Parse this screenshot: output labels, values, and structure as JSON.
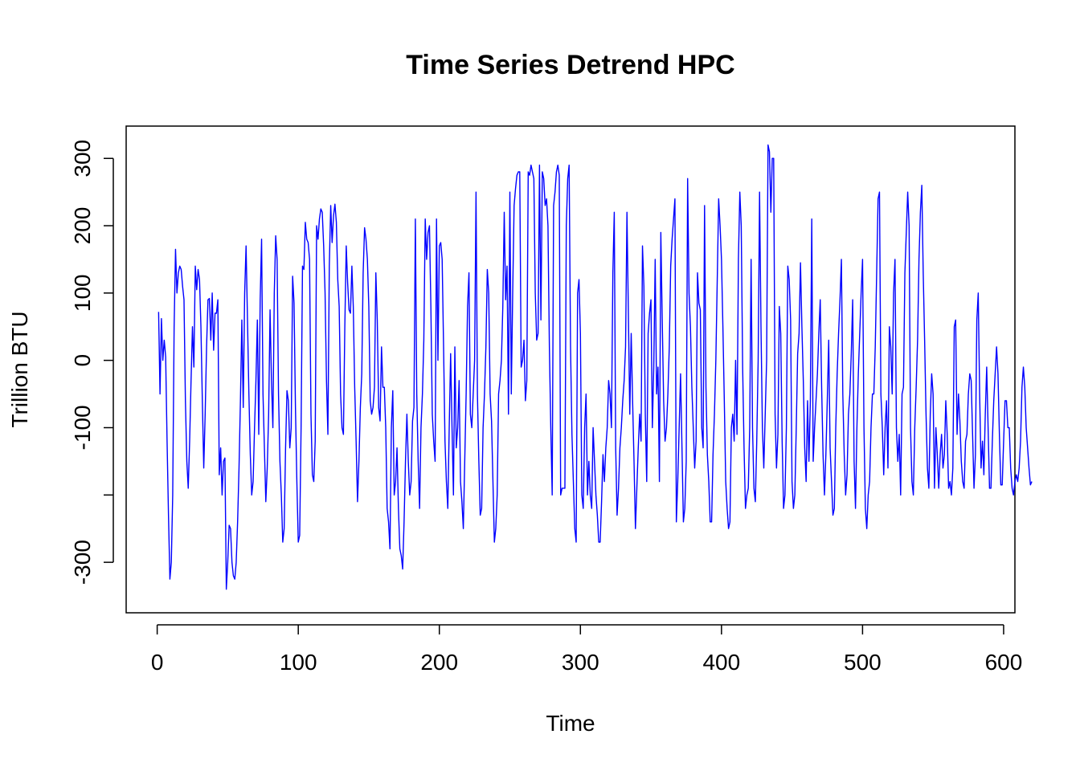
{
  "chart_data": {
    "type": "line",
    "title": "Time Series Detrend HPC",
    "xlabel": "Time",
    "ylabel": "Trillion BTU",
    "xlim": [
      -22,
      608
    ],
    "ylim": [
      -375,
      348
    ],
    "x_ticks": [
      0,
      100,
      200,
      300,
      400,
      500,
      600
    ],
    "x_tick_labels": [
      "0",
      "100",
      "200",
      "300",
      "400",
      "500",
      "600"
    ],
    "y_ticks": [
      -300,
      -200,
      -100,
      0,
      100,
      200,
      300
    ],
    "y_tick_labels": [
      "-300",
      "",
      "-100",
      "0",
      "100",
      "200",
      "300"
    ],
    "grid": false,
    "legend": "none",
    "line_color": "#0000ff",
    "series": [
      {
        "x_start": 1,
        "x_step": 1,
        "values": [
          72,
          -50,
          62,
          0,
          30,
          5,
          -120,
          -230,
          -325,
          -300,
          -200,
          50,
          165,
          100,
          130,
          140,
          135,
          110,
          90,
          -60,
          -150,
          -190,
          -120,
          -30,
          50,
          -10,
          140,
          105,
          135,
          120,
          50,
          -60,
          -160,
          -80,
          20,
          90,
          92,
          30,
          100,
          15,
          70,
          70,
          90,
          -170,
          -130,
          -200,
          -150,
          -145,
          -340,
          -300,
          -245,
          -250,
          -300,
          -320,
          -325,
          -300,
          -240,
          -160,
          -60,
          60,
          -70,
          100,
          170,
          60,
          -50,
          -140,
          -200,
          -180,
          -100,
          -30,
          60,
          -110,
          90,
          180,
          -50,
          -130,
          -210,
          -160,
          -80,
          75,
          -30,
          -100,
          100,
          185,
          150,
          -50,
          -150,
          -200,
          -270,
          -250,
          -130,
          -45,
          -60,
          -130,
          -100,
          125,
          85,
          -70,
          -180,
          -270,
          -260,
          -100,
          140,
          135,
          205,
          180,
          175,
          150,
          -80,
          -170,
          -180,
          -120,
          200,
          180,
          210,
          225,
          220,
          170,
          100,
          -30,
          -110,
          140,
          230,
          175,
          215,
          232,
          205,
          120,
          80,
          -50,
          -100,
          -110,
          50,
          170,
          115,
          75,
          70,
          140,
          80,
          -40,
          -120,
          -210,
          -150,
          -70,
          -20,
          130,
          197,
          180,
          150,
          80,
          -60,
          -80,
          -70,
          -40,
          130,
          60,
          -70,
          -90,
          20,
          -40,
          -40,
          -100,
          -220,
          -240,
          -280,
          -100,
          -45,
          -200,
          -180,
          -130,
          -220,
          -280,
          -290,
          -310,
          -240,
          -150,
          -80,
          -150,
          -200,
          -180,
          -90,
          -70,
          210,
          -50,
          -150,
          -220,
          -100,
          -50,
          30,
          210,
          150,
          190,
          200,
          80,
          -80,
          -120,
          -150,
          210,
          0,
          170,
          175,
          150,
          20,
          -120,
          -180,
          -220,
          -100,
          10,
          -100,
          -200,
          20,
          -130,
          -100,
          -30,
          -180,
          -210,
          -250,
          -150,
          -50,
          80,
          130,
          -80,
          -100,
          -50,
          0,
          250,
          -50,
          -150,
          -230,
          -220,
          -100,
          -50,
          20,
          135,
          100,
          -50,
          -90,
          -180,
          -270,
          -250,
          -200,
          -50,
          -30,
          0,
          80,
          220,
          90,
          140,
          -80,
          250,
          -50,
          100,
          230,
          255,
          275,
          280,
          280,
          -10,
          0,
          30,
          -60,
          -30,
          280,
          275,
          290,
          280,
          270,
          100,
          30,
          40,
          290,
          60,
          280,
          270,
          230,
          240,
          200,
          20,
          -100,
          -200,
          230,
          250,
          280,
          290,
          275,
          -200,
          -190,
          -190,
          -190,
          200,
          270,
          290,
          20,
          -110,
          -180,
          -250,
          -270,
          100,
          120,
          40,
          -200,
          -220,
          -100,
          -50,
          -200,
          -150,
          -200,
          -220,
          -100,
          -150,
          -200,
          -230,
          -270,
          -270,
          -210,
          -140,
          -180,
          -130,
          -100,
          -30,
          -50,
          -100,
          130,
          220,
          -130,
          -230,
          -190,
          -130,
          -100,
          -60,
          -30,
          20,
          220,
          70,
          -80,
          40,
          -60,
          -150,
          -250,
          -190,
          -130,
          -80,
          -120,
          170,
          110,
          -80,
          -180,
          40,
          70,
          90,
          -100,
          -10,
          150,
          -50,
          -10,
          -180,
          190,
          60,
          -60,
          -120,
          -100,
          -50,
          20,
          140,
          180,
          210,
          240,
          -240,
          -180,
          -100,
          -20,
          -130,
          -240,
          -220,
          -150,
          270,
          100,
          50,
          -40,
          -100,
          -160,
          -120,
          130,
          85,
          75,
          -100,
          -130,
          230,
          -40,
          -140,
          -180,
          -240,
          -240,
          -140,
          -80,
          0,
          120,
          240,
          200,
          150,
          50,
          -60,
          -180,
          -220,
          -250,
          -240,
          -100,
          -80,
          -120,
          0,
          -110,
          150,
          250,
          200,
          -10,
          -130,
          -220,
          -200,
          -190,
          -100,
          150,
          -100,
          -190,
          -210,
          -120,
          0,
          250,
          50,
          -100,
          -160,
          -80,
          0,
          320,
          310,
          220,
          300,
          300,
          -80,
          -160,
          -110,
          80,
          40,
          -120,
          -220,
          -200,
          -100,
          140,
          120,
          60,
          -180,
          -220,
          -200,
          -100,
          10,
          40,
          145,
          50,
          -30,
          -130,
          -180,
          -60,
          -150,
          -60,
          210,
          -150,
          -100,
          -60,
          -20,
          40,
          90,
          -40,
          -140,
          -200,
          -140,
          -60,
          30,
          -130,
          -180,
          -230,
          -220,
          -100,
          -20,
          40,
          90,
          150,
          -50,
          -140,
          -200,
          -170,
          -80,
          -50,
          10,
          90,
          -150,
          -220,
          -100,
          -20,
          40,
          100,
          150,
          -100,
          -220,
          -250,
          -200,
          -180,
          -100,
          -50,
          -50,
          20,
          130,
          240,
          250,
          -50,
          -100,
          -170,
          -100,
          -60,
          -160,
          50,
          20,
          -50,
          100,
          150,
          -100,
          -150,
          -110,
          -200,
          -50,
          -40,
          130,
          190,
          250,
          200,
          -100,
          -180,
          -200,
          -100,
          -40,
          30,
          150,
          220,
          260,
          130,
          30,
          -80,
          -160,
          -190,
          -80,
          -20,
          -50,
          -190,
          -100,
          -140,
          -190,
          -140,
          -110,
          -160,
          -140,
          -60,
          -110,
          -190,
          -180,
          -200,
          -160,
          50,
          60,
          -110,
          -50,
          -90,
          -150,
          -180,
          -190,
          -120,
          -110,
          -50,
          -20,
          -30,
          -110,
          -190,
          -140,
          60,
          100,
          -50,
          -160,
          -120,
          -170,
          -80,
          -10,
          -100,
          -190,
          -190,
          -120,
          -60,
          -20,
          20,
          -20,
          -110,
          -185,
          -185,
          -120,
          -60,
          -60,
          -100,
          -100,
          -160,
          -190,
          -200,
          -180,
          -170,
          -180,
          -160,
          -120,
          -40,
          -10,
          -40,
          -100,
          -130,
          -160,
          -185,
          -180
        ]
      }
    ]
  }
}
